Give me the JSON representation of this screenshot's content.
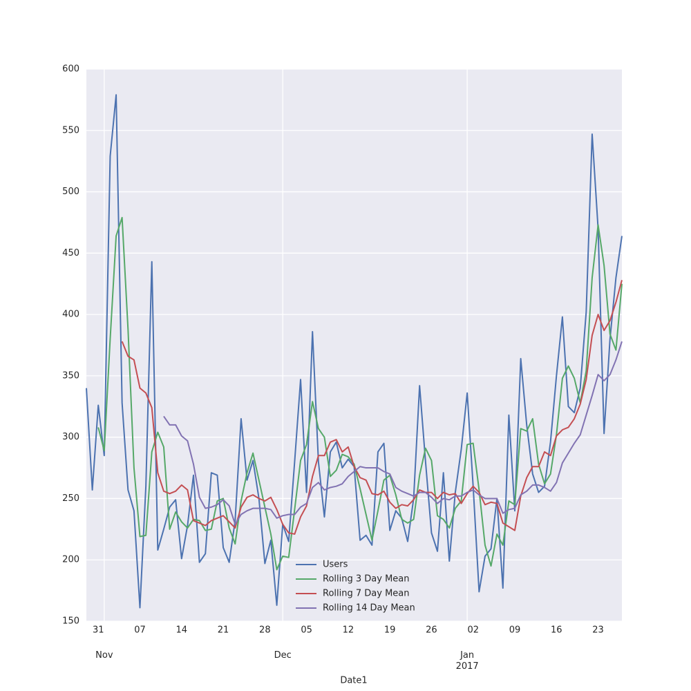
{
  "chart_data": {
    "type": "line",
    "xlabel": "Date1",
    "legend": "lower center",
    "grid": true,
    "x": [
      "2016-10-29",
      "2016-10-30",
      "2016-10-31",
      "2016-11-01",
      "2016-11-02",
      "2016-11-03",
      "2016-11-04",
      "2016-11-05",
      "2016-11-06",
      "2016-11-07",
      "2016-11-08",
      "2016-11-09",
      "2016-11-10",
      "2016-11-11",
      "2016-11-12",
      "2016-11-13",
      "2016-11-14",
      "2016-11-15",
      "2016-11-16",
      "2016-11-17",
      "2016-11-18",
      "2016-11-19",
      "2016-11-20",
      "2016-11-21",
      "2016-11-22",
      "2016-11-23",
      "2016-11-24",
      "2016-11-25",
      "2016-11-26",
      "2016-11-27",
      "2016-11-28",
      "2016-11-29",
      "2016-11-30",
      "2016-12-01",
      "2016-12-02",
      "2016-12-03",
      "2016-12-04",
      "2016-12-05",
      "2016-12-06",
      "2016-12-07",
      "2016-12-08",
      "2016-12-09",
      "2016-12-10",
      "2016-12-11",
      "2016-12-12",
      "2016-12-13",
      "2016-12-14",
      "2016-12-15",
      "2016-12-16",
      "2016-12-17",
      "2016-12-18",
      "2016-12-19",
      "2016-12-20",
      "2016-12-21",
      "2016-12-22",
      "2016-12-23",
      "2016-12-24",
      "2016-12-25",
      "2016-12-26",
      "2016-12-27",
      "2016-12-28",
      "2016-12-29",
      "2016-12-30",
      "2016-12-31",
      "2017-01-01",
      "2017-01-02",
      "2017-01-03",
      "2017-01-04",
      "2017-01-05",
      "2017-01-06",
      "2017-01-07",
      "2017-01-08",
      "2017-01-09",
      "2017-01-10",
      "2017-01-11",
      "2017-01-12",
      "2017-01-13",
      "2017-01-14",
      "2017-01-15",
      "2017-01-16",
      "2017-01-17",
      "2017-01-18",
      "2017-01-19",
      "2017-01-20",
      "2017-01-21",
      "2017-01-22",
      "2017-01-23",
      "2017-01-24",
      "2017-01-25",
      "2017-01-26",
      "2017-01-27"
    ],
    "series": [
      {
        "name": "Users",
        "color": "#4c72b0",
        "values": [
          340,
          257,
          326,
          285,
          529,
          579,
          328,
          257,
          240,
          161,
          260,
          443,
          208,
          225,
          243,
          249,
          201,
          228,
          269,
          198,
          205,
          271,
          269,
          210,
          198,
          232,
          315,
          265,
          281,
          250,
          197,
          216,
          163,
          229,
          215,
          280,
          347,
          255,
          386,
          280,
          235,
          288,
          296,
          275,
          282,
          276,
          216,
          220,
          212,
          288,
          295,
          224,
          240,
          234,
          215,
          250,
          342,
          280,
          222,
          207,
          271,
          199,
          255,
          290,
          336,
          260,
          174,
          203,
          209,
          250,
          177,
          318,
          240,
          364,
          310,
          270,
          255,
          260,
          296,
          350,
          398,
          325,
          320,
          340,
          402,
          547,
          470,
          303,
          380,
          430,
          464
        ]
      },
      {
        "name": "Rolling 3 Day Mean",
        "color": "#55a868",
        "values": [
          null,
          null,
          308,
          289,
          380,
          464,
          479,
          388,
          275,
          219,
          220,
          288,
          304,
          292,
          225,
          239,
          231,
          226,
          233,
          232,
          224,
          225,
          248,
          250,
          226,
          213,
          248,
          271,
          287,
          265,
          243,
          221,
          192,
          203,
          202,
          241,
          281,
          294,
          329,
          307,
          300,
          268,
          273,
          286,
          284,
          278,
          258,
          237,
          216,
          240,
          265,
          269,
          253,
          233,
          230,
          233,
          269,
          291,
          281,
          236,
          233,
          226,
          242,
          248,
          294,
          295,
          257,
          212,
          195,
          221,
          212,
          248,
          245,
          307,
          305,
          315,
          278,
          262,
          270,
          302,
          348,
          358,
          348,
          328,
          354,
          430,
          473,
          440,
          384,
          371,
          425
        ]
      },
      {
        "name": "Rolling 7 Day Mean",
        "color": "#c44e52",
        "values": [
          null,
          null,
          null,
          null,
          null,
          null,
          378,
          366,
          363,
          340,
          336,
          324,
          271,
          256,
          254,
          256,
          261,
          257,
          232,
          230,
          228,
          232,
          234,
          236,
          231,
          226,
          243,
          251,
          253,
          250,
          248,
          251,
          241,
          229,
          222,
          221,
          235,
          244,
          268,
          285,
          285,
          296,
          298,
          288,
          292,
          276,
          267,
          265,
          254,
          253,
          256,
          247,
          242,
          245,
          244,
          249,
          257,
          255,
          255,
          250,
          255,
          253,
          254,
          246,
          254,
          260,
          255,
          245,
          247,
          246,
          230,
          227,
          224,
          252,
          267,
          276,
          276,
          288,
          285,
          301,
          306,
          308,
          315,
          327,
          347,
          383,
          400,
          387,
          395,
          410,
          428
        ]
      },
      {
        "name": "Rolling 14 Day Mean",
        "color": "#8172b2",
        "values": [
          null,
          null,
          null,
          null,
          null,
          null,
          null,
          null,
          null,
          null,
          null,
          null,
          null,
          317,
          310,
          310,
          301,
          297,
          278,
          251,
          242,
          243,
          245,
          249,
          244,
          229,
          237,
          240,
          242,
          242,
          242,
          241,
          234,
          236,
          237,
          237,
          243,
          246,
          259,
          263,
          257,
          259,
          260,
          262,
          268,
          272,
          276,
          275,
          275,
          275,
          272,
          270,
          259,
          256,
          254,
          252,
          255,
          255,
          251,
          246,
          250,
          249,
          252,
          252,
          255,
          257,
          253,
          250,
          250,
          250,
          238,
          241,
          242,
          253,
          256,
          261,
          261,
          259,
          256,
          263,
          279,
          287,
          295,
          302,
          318,
          334,
          351,
          346,
          351,
          363,
          378
        ]
      }
    ],
    "xlim": [
      "2016-10-29",
      "2017-01-27"
    ],
    "xticks": [
      {
        "value": "2016-10-31",
        "label": "31"
      },
      {
        "value": "2016-11-07",
        "label": "07"
      },
      {
        "value": "2016-11-14",
        "label": "14"
      },
      {
        "value": "2016-11-21",
        "label": "21"
      },
      {
        "value": "2016-11-28",
        "label": "28"
      },
      {
        "value": "2016-12-05",
        "label": "05"
      },
      {
        "value": "2016-12-12",
        "label": "12"
      },
      {
        "value": "2016-12-19",
        "label": "19"
      },
      {
        "value": "2016-12-26",
        "label": "26"
      },
      {
        "value": "2017-01-02",
        "label": "02"
      },
      {
        "value": "2017-01-09",
        "label": "09"
      },
      {
        "value": "2017-01-16",
        "label": "16"
      },
      {
        "value": "2017-01-23",
        "label": "23"
      }
    ],
    "xticks_major": [
      {
        "value": "2016-11-01",
        "label": "Nov"
      },
      {
        "value": "2016-12-01",
        "label": "Dec"
      },
      {
        "value": "2017-01-01",
        "label": "Jan\n2017"
      }
    ],
    "ylim": [
      150,
      600
    ],
    "yticks": [
      150,
      200,
      250,
      300,
      350,
      400,
      450,
      500,
      550,
      600
    ]
  }
}
